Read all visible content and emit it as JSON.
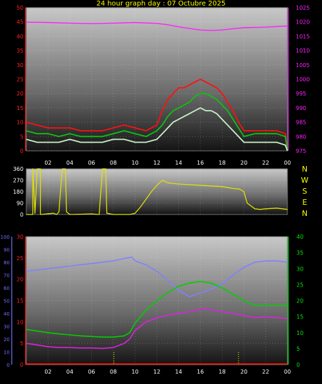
{
  "title": "24 hour graph day : 07 Octubre 2025",
  "colors": {
    "background": "#000000",
    "title": "#ffff00",
    "left_axis": "#ff2020",
    "right_axis_pressure": "#ff20ff",
    "right_axis_temperature": "#00ee00",
    "humidity_axis": "#7070ff",
    "x_labels": "#ffffff",
    "direction_labels": "#ffff00"
  },
  "x_tick_labels": [
    "02",
    "04",
    "06",
    "08",
    "10",
    "12",
    "14",
    "16",
    "18",
    "20",
    "22",
    "00"
  ],
  "chart_data": [
    {
      "type": "line",
      "id": "wind_pressure",
      "grid": true,
      "x_range_hours": [
        0,
        24
      ],
      "left_axis": {
        "ticks": [
          0,
          5,
          10,
          15,
          20,
          25,
          30,
          35,
          40,
          45,
          50
        ],
        "ylim": [
          0,
          50
        ]
      },
      "right_axis": {
        "ticks": [
          975,
          980,
          985,
          990,
          995,
          1000,
          1005,
          1010,
          1015,
          1020,
          1025
        ],
        "ylim": [
          975,
          1025
        ]
      },
      "series": [
        {
          "axis": "right",
          "color": "#ff20ff",
          "points": [
            [
              0,
              1019.9
            ],
            [
              2,
              1019.8
            ],
            [
              4,
              1019.6
            ],
            [
              6,
              1019.4
            ],
            [
              8,
              1019.6
            ],
            [
              10,
              1019.8
            ],
            [
              12,
              1019.5
            ],
            [
              13,
              1019.0
            ],
            [
              14,
              1018.3
            ],
            [
              15,
              1017.7
            ],
            [
              16,
              1017.2
            ],
            [
              17,
              1017.0
            ],
            [
              18,
              1017.2
            ],
            [
              19,
              1017.6
            ],
            [
              20,
              1018.0
            ],
            [
              22,
              1018.2
            ],
            [
              24,
              1018.6
            ]
          ]
        },
        {
          "axis": "left",
          "color": "#ff1010",
          "points": [
            [
              0,
              10
            ],
            [
              1,
              9
            ],
            [
              2,
              8
            ],
            [
              3,
              8
            ],
            [
              4,
              8
            ],
            [
              5,
              7
            ],
            [
              6,
              7
            ],
            [
              7,
              7
            ],
            [
              8,
              8
            ],
            [
              9,
              9
            ],
            [
              10,
              8
            ],
            [
              11,
              7
            ],
            [
              12,
              9
            ],
            [
              12.5,
              14
            ],
            [
              13,
              18
            ],
            [
              13.5,
              20
            ],
            [
              14,
              22
            ],
            [
              14.5,
              22
            ],
            [
              15,
              23
            ],
            [
              15.5,
              24
            ],
            [
              16,
              25
            ],
            [
              16.5,
              24
            ],
            [
              17,
              23
            ],
            [
              17.5,
              22
            ],
            [
              18,
              20
            ],
            [
              18.5,
              17
            ],
            [
              19,
              14
            ],
            [
              19.5,
              10
            ],
            [
              20,
              7
            ],
            [
              21,
              7
            ],
            [
              22,
              7
            ],
            [
              23,
              7
            ],
            [
              23.8,
              6
            ],
            [
              24,
              0
            ]
          ]
        },
        {
          "axis": "left",
          "color": "#10c010",
          "points": [
            [
              0,
              7
            ],
            [
              1,
              6
            ],
            [
              2,
              6
            ],
            [
              3,
              5
            ],
            [
              4,
              6
            ],
            [
              5,
              5
            ],
            [
              6,
              5
            ],
            [
              7,
              5
            ],
            [
              8,
              6
            ],
            [
              9,
              7
            ],
            [
              10,
              6
            ],
            [
              11,
              5
            ],
            [
              12,
              7
            ],
            [
              12.5,
              9
            ],
            [
              13,
              12
            ],
            [
              13.5,
              14
            ],
            [
              14,
              15
            ],
            [
              14.5,
              16
            ],
            [
              15,
              17
            ],
            [
              15.5,
              19
            ],
            [
              16,
              20
            ],
            [
              16.5,
              20
            ],
            [
              17,
              19
            ],
            [
              17.5,
              18
            ],
            [
              18,
              16
            ],
            [
              18.5,
              14
            ],
            [
              19,
              11
            ],
            [
              19.5,
              8
            ],
            [
              20,
              5
            ],
            [
              21,
              6
            ],
            [
              22,
              6
            ],
            [
              23,
              6
            ],
            [
              23.8,
              5
            ],
            [
              24,
              0
            ]
          ]
        },
        {
          "axis": "left",
          "color": "#c8f0c8",
          "points": [
            [
              0,
              4
            ],
            [
              1,
              3
            ],
            [
              2,
              3
            ],
            [
              3,
              3
            ],
            [
              4,
              4
            ],
            [
              5,
              3
            ],
            [
              6,
              3
            ],
            [
              7,
              3
            ],
            [
              8,
              4
            ],
            [
              9,
              4
            ],
            [
              10,
              3
            ],
            [
              11,
              3
            ],
            [
              12,
              4
            ],
            [
              12.5,
              6
            ],
            [
              13,
              8
            ],
            [
              13.5,
              10
            ],
            [
              14,
              11
            ],
            [
              14.5,
              12
            ],
            [
              15,
              13
            ],
            [
              15.5,
              14
            ],
            [
              16,
              15
            ],
            [
              16.5,
              14
            ],
            [
              17,
              14
            ],
            [
              17.5,
              13
            ],
            [
              18,
              11
            ],
            [
              18.5,
              9
            ],
            [
              19,
              7
            ],
            [
              19.5,
              5
            ],
            [
              20,
              3
            ],
            [
              21,
              3
            ],
            [
              22,
              3
            ],
            [
              23,
              3
            ],
            [
              23.8,
              2
            ],
            [
              24,
              0
            ]
          ]
        }
      ]
    },
    {
      "type": "line",
      "id": "wind_direction",
      "grid": true,
      "x_range_hours": [
        0,
        24
      ],
      "left_axis": {
        "ticks": [
          0,
          90,
          180,
          270,
          360
        ],
        "ylim": [
          0,
          360
        ]
      },
      "right_labels": [
        "N",
        "W",
        "S",
        "E",
        "N"
      ],
      "series": [
        {
          "axis": "left",
          "color": "#e0e000",
          "points": [
            [
              0,
              0
            ],
            [
              0.6,
              0
            ],
            [
              0.6,
              360
            ],
            [
              0.8,
              10
            ],
            [
              1.0,
              360
            ],
            [
              1.3,
              360
            ],
            [
              1.3,
              0
            ],
            [
              2.5,
              10
            ],
            [
              2.8,
              0
            ],
            [
              3.0,
              20
            ],
            [
              3.3,
              360
            ],
            [
              3.6,
              360
            ],
            [
              3.7,
              20
            ],
            [
              4.0,
              0
            ],
            [
              6.0,
              5
            ],
            [
              6.7,
              0
            ],
            [
              7.0,
              360
            ],
            [
              7.3,
              360
            ],
            [
              7.4,
              10
            ],
            [
              8.0,
              0
            ],
            [
              9.5,
              0
            ],
            [
              10.0,
              10
            ],
            [
              10.5,
              60
            ],
            [
              11.0,
              120
            ],
            [
              11.5,
              180
            ],
            [
              12.0,
              230
            ],
            [
              12.5,
              270
            ],
            [
              13.0,
              250
            ],
            [
              14.0,
              240
            ],
            [
              15.0,
              235
            ],
            [
              16.0,
              230
            ],
            [
              17.0,
              225
            ],
            [
              18.0,
              220
            ],
            [
              19.0,
              205
            ],
            [
              19.6,
              200
            ],
            [
              20.0,
              180
            ],
            [
              20.3,
              90
            ],
            [
              21.0,
              45
            ],
            [
              21.5,
              40
            ],
            [
              22.0,
              45
            ],
            [
              23.0,
              50
            ],
            [
              24.0,
              40
            ]
          ]
        }
      ]
    },
    {
      "type": "line",
      "id": "temp_humidity",
      "grid": true,
      "x_range_hours": [
        0,
        24
      ],
      "humidity_axis": {
        "ticks": [
          0,
          10,
          20,
          30,
          40,
          50,
          60,
          70,
          80,
          90,
          100
        ],
        "ylim": [
          0,
          100
        ]
      },
      "left_axis": {
        "ticks": [
          0,
          5,
          10,
          15,
          20,
          25,
          30
        ],
        "ylim": [
          0,
          30
        ]
      },
      "right_axis": {
        "ticks": [
          0,
          5,
          10,
          15,
          20,
          25,
          30,
          35,
          40
        ],
        "ylim": [
          0,
          40
        ]
      },
      "series": [
        {
          "axis": "humidity",
          "color": "#8080ff",
          "points": [
            [
              0,
              73
            ],
            [
              2,
              75
            ],
            [
              4,
              77
            ],
            [
              6,
              79
            ],
            [
              8,
              81
            ],
            [
              9,
              83
            ],
            [
              9.7,
              84
            ],
            [
              10,
              81
            ],
            [
              11,
              78
            ],
            [
              12,
              73
            ],
            [
              13,
              66
            ],
            [
              14,
              58
            ],
            [
              15,
              53
            ],
            [
              16,
              56
            ],
            [
              17,
              59
            ],
            [
              18,
              63
            ],
            [
              19,
              70
            ],
            [
              20,
              76
            ],
            [
              21,
              80
            ],
            [
              22,
              81
            ],
            [
              23,
              81
            ],
            [
              24,
              80
            ]
          ]
        },
        {
          "axis": "right",
          "color": "#00d000",
          "points": [
            [
              0,
              11
            ],
            [
              1,
              10.5
            ],
            [
              2,
              10
            ],
            [
              3,
              9.6
            ],
            [
              4,
              9.3
            ],
            [
              5,
              9.0
            ],
            [
              6,
              8.8
            ],
            [
              7,
              8.6
            ],
            [
              8,
              8.6
            ],
            [
              9,
              9.0
            ],
            [
              9.5,
              10
            ],
            [
              10,
              13
            ],
            [
              11,
              17
            ],
            [
              12,
              20
            ],
            [
              13,
              22.5
            ],
            [
              14,
              24.5
            ],
            [
              15,
              25.5
            ],
            [
              16,
              26
            ],
            [
              17,
              25.5
            ],
            [
              18,
              24
            ],
            [
              19,
              22
            ],
            [
              20,
              20
            ],
            [
              21,
              18.5
            ],
            [
              22,
              18.5
            ],
            [
              23,
              18.5
            ],
            [
              24,
              18.5
            ]
          ]
        },
        {
          "axis": "left",
          "color": "#e020e0",
          "points": [
            [
              0,
              5
            ],
            [
              1,
              4.6
            ],
            [
              2,
              4.2
            ],
            [
              3,
              4.0
            ],
            [
              4,
              4.0
            ],
            [
              5,
              3.9
            ],
            [
              6,
              3.9
            ],
            [
              7,
              3.8
            ],
            [
              8,
              4.0
            ],
            [
              9,
              5.0
            ],
            [
              9.5,
              6.0
            ],
            [
              10,
              8.0
            ],
            [
              11,
              10.0
            ],
            [
              12,
              11.0
            ],
            [
              13,
              11.6
            ],
            [
              14,
              12.0
            ],
            [
              15,
              12.4
            ],
            [
              16,
              13.0
            ],
            [
              16.5,
              13.2
            ],
            [
              17,
              12.8
            ],
            [
              18,
              12.4
            ],
            [
              19,
              12.0
            ],
            [
              20,
              11.5
            ],
            [
              21,
              11.0
            ],
            [
              22,
              11.2
            ],
            [
              23,
              11.0
            ],
            [
              24,
              10.8
            ]
          ]
        },
        {
          "axis": "left",
          "color": "#ff0000",
          "points": [
            [
              0,
              0.2
            ],
            [
              24,
              0.2
            ]
          ]
        }
      ],
      "markers_hours": [
        8.05,
        19.5
      ]
    }
  ]
}
